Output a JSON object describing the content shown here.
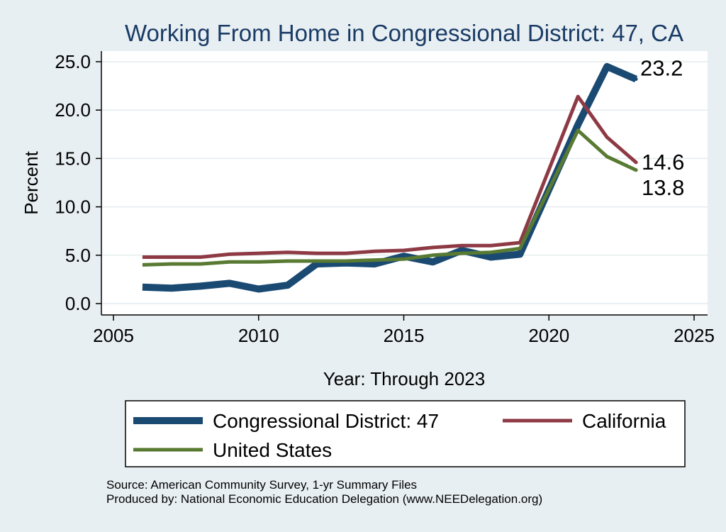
{
  "chart_data": {
    "type": "line",
    "title": "Working From Home in Congressional District: 47, CA",
    "xlabel": "Year: Through 2023",
    "ylabel": "Percent",
    "xlim": [
      2005,
      2025
    ],
    "ylim": [
      0,
      25
    ],
    "x_ticks": [
      "2005",
      "2010",
      "2015",
      "2020",
      "2025"
    ],
    "y_ticks": [
      "0.0",
      "5.0",
      "10.0",
      "15.0",
      "20.0",
      "25.0"
    ],
    "grid": true,
    "legend_placement": "bottom",
    "x": [
      2006,
      2007,
      2008,
      2009,
      2010,
      2011,
      2012,
      2013,
      2014,
      2015,
      2016,
      2017,
      2018,
      2019,
      2021,
      2022,
      2023
    ],
    "series": [
      {
        "name": "Congressional District: 47",
        "color": "#1a4a72",
        "values": [
          1.7,
          1.6,
          1.8,
          2.1,
          1.5,
          1.9,
          4.1,
          4.2,
          4.1,
          4.9,
          4.3,
          5.5,
          4.8,
          5.1,
          18.5,
          24.5,
          23.2
        ],
        "end_label": "23.2"
      },
      {
        "name": "California",
        "color": "#8e3a45",
        "values": [
          4.8,
          4.8,
          4.8,
          5.1,
          5.2,
          5.3,
          5.2,
          5.2,
          5.4,
          5.5,
          5.8,
          6.0,
          6.0,
          6.3,
          21.4,
          17.2,
          14.6
        ],
        "end_label": "14.6"
      },
      {
        "name": "United States",
        "color": "#587a32",
        "values": [
          4.0,
          4.1,
          4.1,
          4.3,
          4.3,
          4.4,
          4.4,
          4.4,
          4.5,
          4.6,
          5.0,
          5.2,
          5.3,
          5.7,
          17.9,
          15.2,
          13.8
        ],
        "end_label": "13.8"
      }
    ],
    "source_lines": [
      "Source: American Community Survey, 1-yr Summary Files",
      "Produced by: National Economic Education Delegation (www.NEEDelegation.org)"
    ]
  }
}
